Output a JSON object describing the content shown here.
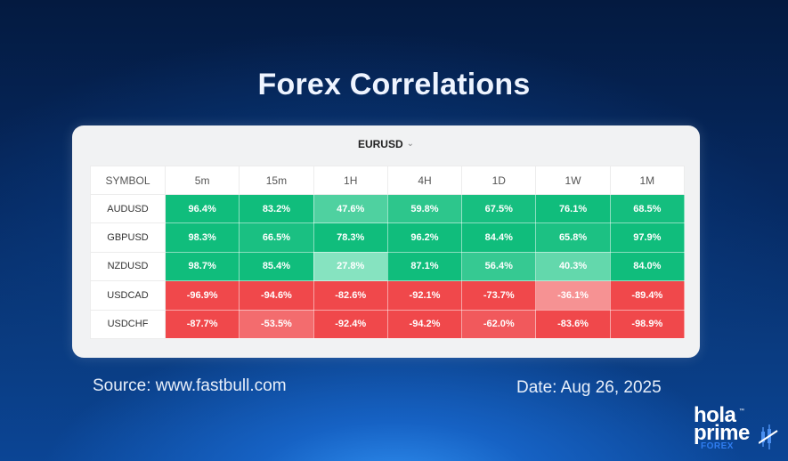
{
  "page": {
    "title": "Forex Correlations",
    "source": "Source: www.fastbull.com",
    "date": "Date: Aug 26, 2025",
    "logo": {
      "line1": "hola",
      "line2": "prime",
      "line3": "FOREX",
      "tm": "™"
    }
  },
  "widget": {
    "selector_label": "EURUSD",
    "selector_icon": "chevron-down-icon",
    "colors": {
      "positive_strong": "#10bd7c",
      "positive_weak": "#8ee6c4",
      "negative_strong": "#f0484b",
      "negative_weak": "#f8aaab"
    }
  },
  "chart_data": {
    "type": "heatmap",
    "title": "Forex Correlations",
    "base_symbol": "EURUSD",
    "columns_header": "SYMBOL",
    "x": [
      "5m",
      "15m",
      "1H",
      "4H",
      "1D",
      "1W",
      "1M"
    ],
    "y": [
      "AUDUSD",
      "GBPUSD",
      "NZDUSD",
      "USDCAD",
      "USDCHF"
    ],
    "values": [
      [
        96.4,
        83.2,
        47.6,
        59.8,
        67.5,
        76.1,
        68.5
      ],
      [
        98.3,
        66.5,
        78.3,
        96.2,
        84.4,
        65.8,
        97.9
      ],
      [
        98.7,
        85.4,
        27.8,
        87.1,
        56.4,
        40.3,
        84.0
      ],
      [
        -96.9,
        -94.6,
        -82.6,
        -92.1,
        -73.7,
        -36.1,
        -89.4
      ],
      [
        -87.7,
        -53.5,
        -92.4,
        -94.2,
        -62.0,
        -83.6,
        -98.9
      ]
    ],
    "labels": [
      [
        "96.4%",
        "83.2%",
        "47.6%",
        "59.8%",
        "67.5%",
        "76.1%",
        "68.5%"
      ],
      [
        "98.3%",
        "66.5%",
        "78.3%",
        "96.2%",
        "84.4%",
        "65.8%",
        "97.9%"
      ],
      [
        "98.7%",
        "85.4%",
        "27.8%",
        "87.1%",
        "56.4%",
        "40.3%",
        "84.0%"
      ],
      [
        "-96.9%",
        "-94.6%",
        "-82.6%",
        "-92.1%",
        "-73.7%",
        "-36.1%",
        "-89.4%"
      ],
      [
        "-87.7%",
        "-53.5%",
        "-92.4%",
        "-94.2%",
        "-62.0%",
        "-83.6%",
        "-98.9%"
      ]
    ],
    "unit": "%",
    "range": [
      -100,
      100
    ]
  }
}
